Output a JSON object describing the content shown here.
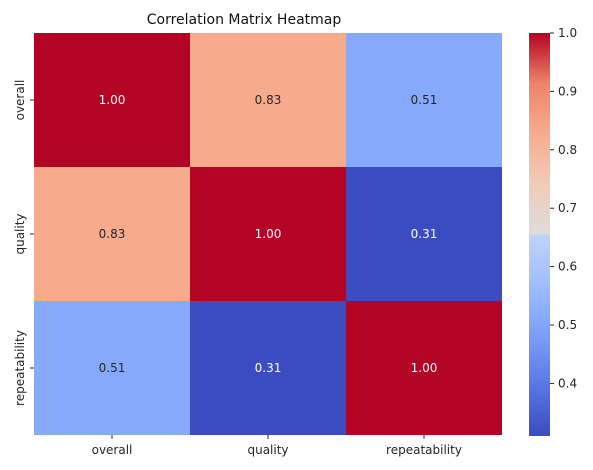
{
  "chart_data": {
    "type": "heatmap",
    "title": "Correlation Matrix Heatmap",
    "x_categories": [
      "overall",
      "quality",
      "repeatability"
    ],
    "y_categories": [
      "overall",
      "quality",
      "repeatability"
    ],
    "values": [
      [
        1.0,
        0.83,
        0.51
      ],
      [
        0.83,
        1.0,
        0.31
      ],
      [
        0.51,
        0.31,
        1.0
      ]
    ],
    "annotations": [
      [
        "1.00",
        "0.83",
        "0.51"
      ],
      [
        "0.83",
        "1.00",
        "0.31"
      ],
      [
        "0.51",
        "0.31",
        "1.00"
      ]
    ],
    "colormap": "coolwarm",
    "colorbar": {
      "range": [
        0.31,
        1.0
      ],
      "ticks": [
        0.4,
        0.5,
        0.6,
        0.7,
        0.8,
        0.9,
        1.0
      ],
      "tick_labels": [
        "0.4",
        "0.5",
        "0.6",
        "0.7",
        "0.8",
        "0.9",
        "1.0"
      ]
    },
    "grid": false
  }
}
